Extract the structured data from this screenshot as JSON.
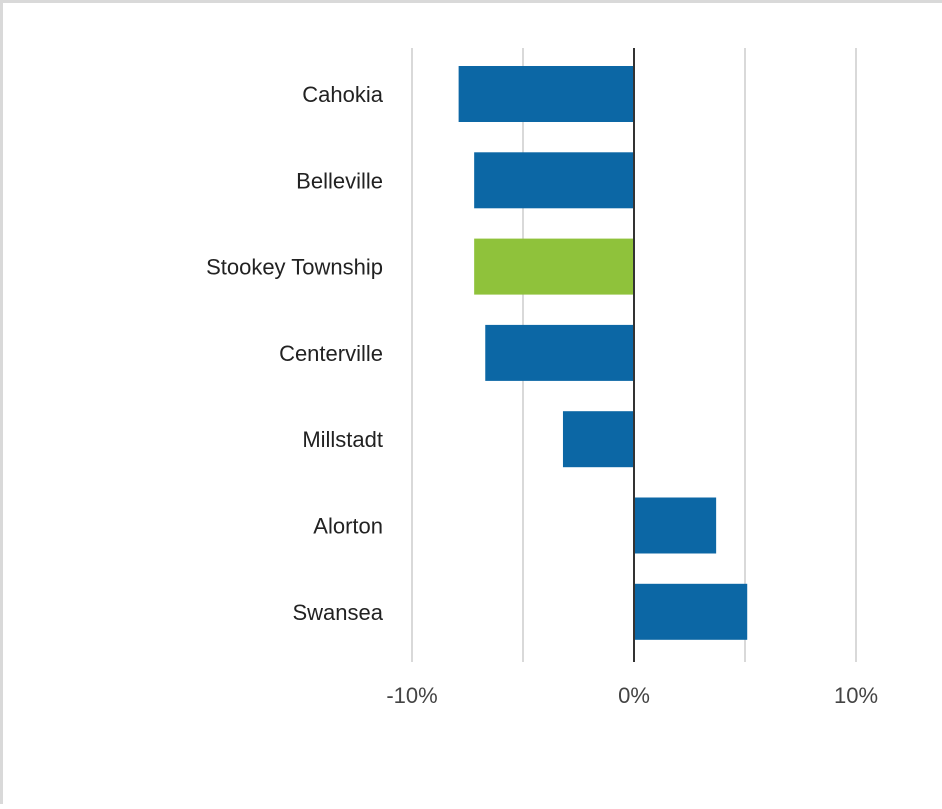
{
  "chart_data": {
    "type": "bar",
    "orientation": "horizontal",
    "title": "",
    "xlabel": "",
    "ylabel": "",
    "categories": [
      "Cahokia",
      "Belleville",
      "Stookey Township",
      "Centerville",
      "Millstadt",
      "Alorton",
      "Swansea"
    ],
    "values": [
      -7.9,
      -7.2,
      -7.2,
      -6.7,
      -3.2,
      3.7,
      5.1
    ],
    "value_unit": "%",
    "highlight_category": "Stookey Township",
    "xlim": [
      -10,
      10
    ],
    "ticks": [
      {
        "value": -10,
        "label": "-10%"
      },
      {
        "value": 0,
        "label": "0%"
      },
      {
        "value": 10,
        "label": "10%"
      }
    ],
    "grid": true,
    "legend": "none",
    "colors": {
      "bar": "#0c67a5",
      "highlight": "#8fc23b",
      "gridline": "#d9d9d9",
      "zero_line": "#333333"
    }
  }
}
